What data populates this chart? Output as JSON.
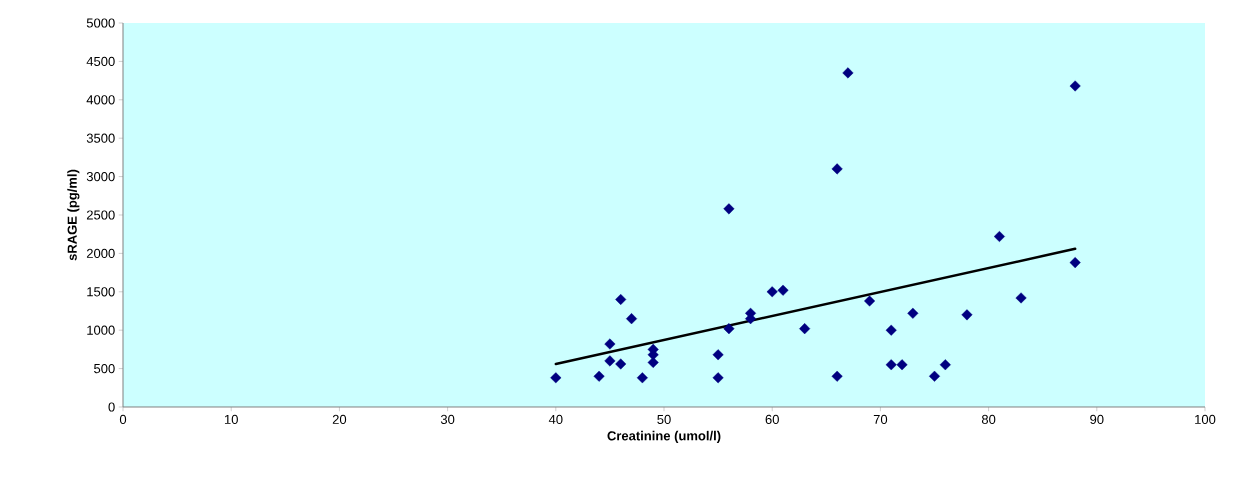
{
  "chart_data": {
    "type": "scatter",
    "xlabel": "Creatinine (umol/l)",
    "ylabel": "sRAGE (pg/ml)",
    "xlim": [
      0,
      100
    ],
    "xticks": [
      0,
      10,
      20,
      30,
      40,
      50,
      60,
      70,
      80,
      90,
      100
    ],
    "ylim": [
      0,
      5000
    ],
    "yticks": [
      0,
      500,
      1000,
      1500,
      2000,
      2500,
      3000,
      3500,
      4000,
      4500,
      5000
    ],
    "grid": false,
    "marker": "diamond",
    "series": [
      {
        "color": "#000080",
        "x": [
          40,
          44,
          45,
          45,
          46,
          46,
          47,
          48,
          49,
          49,
          49,
          55,
          55,
          56,
          56,
          58,
          58,
          60,
          61,
          63,
          66,
          66,
          67,
          69,
          71,
          71,
          72,
          73,
          75,
          76,
          78,
          81,
          83,
          88,
          88
        ],
        "values": [
          380,
          400,
          820,
          600,
          560,
          1400,
          1150,
          380,
          750,
          680,
          580,
          680,
          380,
          2580,
          1020,
          1220,
          1150,
          1500,
          1520,
          1020,
          3100,
          400,
          4350,
          1380,
          1000,
          550,
          550,
          1220,
          400,
          550,
          1200,
          2220,
          1420,
          4180,
          1880
        ]
      },
      {
        "type": "line",
        "color": "#000000",
        "marker": "none",
        "x": [
          40,
          88
        ],
        "values": [
          560,
          2060
        ]
      }
    ]
  }
}
